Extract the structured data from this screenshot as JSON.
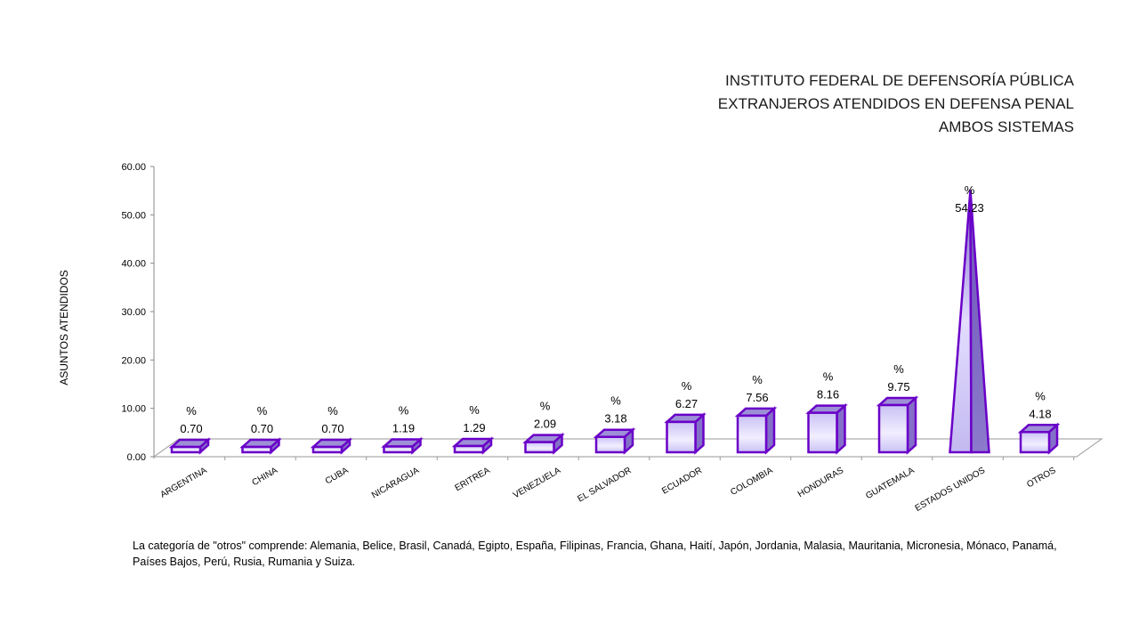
{
  "header": {
    "title_line1": "INSTITUTO FEDERAL DE DEFENSORÍA PÚBLICA",
    "title_line2": "EXTRANJEROS  ATENDIDOS EN DEFENSA PENAL",
    "title_line3": "AMBOS SISTEMAS"
  },
  "footnote": "La categoría de \"otros\" comprende: Alemania, Belice, Brasil, Canadá,  Egipto, España, Filipinas, Francia, Ghana, Haití, Japón, Jordania, Malasia, Mauritania, Micronesia, Mónaco, Panamá, Países Bajos, Perú, Rusia, Rumania y  Suiza.",
  "chart_data": {
    "type": "bar",
    "title": "",
    "ylabel": "ASUNTOS ATENDIDOS",
    "xlabel": "",
    "ylim": [
      0,
      60
    ],
    "yticks": [
      "0.00",
      "10.00",
      "20.00",
      "30.00",
      "40.00",
      "50.00",
      "60.00"
    ],
    "categories": [
      "ARGENTINA",
      "CHINA",
      "CUBA",
      "NICARAGUA",
      "ERITREA",
      "VENEZUELA",
      "EL SALVADOR",
      "ECUADOR",
      "COLOMBIA",
      "HONDURAS",
      "GUATEMALA",
      "ESTADOS UNIDOS",
      "OTROS"
    ],
    "values": [
      0.7,
      0.7,
      0.7,
      1.19,
      1.29,
      2.09,
      3.18,
      6.27,
      7.56,
      8.16,
      9.75,
      54.23,
      4.18
    ],
    "value_labels": [
      "0.70",
      "0.70",
      "0.70",
      "1.19",
      "1.29",
      "2.09",
      "3.18",
      "6.27",
      "7.56",
      "8.16",
      "9.75",
      "54.23",
      "4.18"
    ],
    "label_prefix": "%",
    "bar_shapes": [
      "box",
      "box",
      "box",
      "box",
      "box",
      "box",
      "box",
      "box",
      "box",
      "box",
      "box",
      "pyramid",
      "box"
    ],
    "colors": {
      "edge": "#6a00c8",
      "face_light": "#f2eeff",
      "face_mid": "#c9c2f5",
      "side": "#8470c8",
      "top": "#9d90d6"
    },
    "grid": false,
    "legend": "none"
  }
}
